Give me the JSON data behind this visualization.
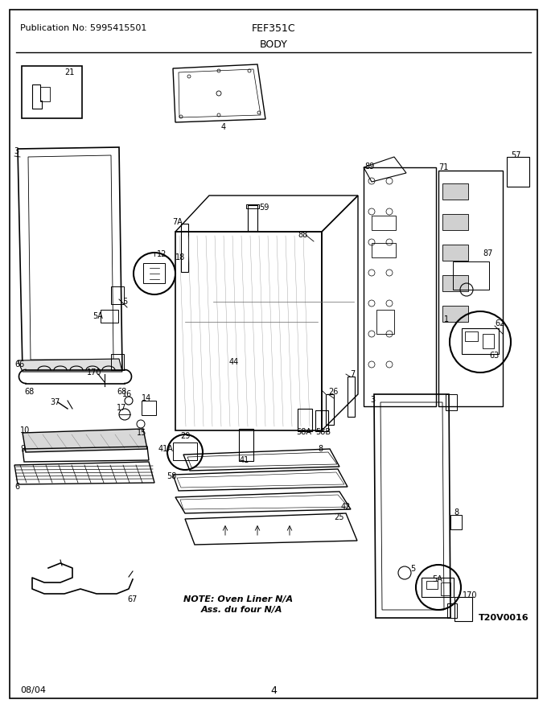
{
  "title_pub": "Publication No: 5995415501",
  "title_model": "FEF351C",
  "title_section": "BODY",
  "footer_date": "08/04",
  "footer_page": "4",
  "watermark": "T20V0016",
  "note_line1": "NOTE: Oven Liner N/A",
  "note_line2": "Ass. du four N/A",
  "bg_color": "#ffffff",
  "border_color": "#000000",
  "text_color": "#000000",
  "fig_width": 6.8,
  "fig_height": 8.8,
  "dpi": 100
}
